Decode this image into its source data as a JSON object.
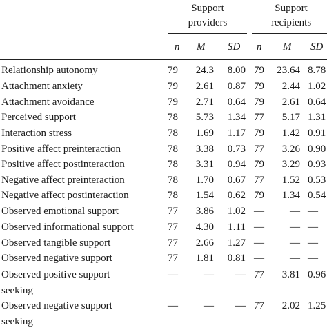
{
  "header": {
    "providers": [
      "Support",
      "providers"
    ],
    "recipients": [
      "Support",
      "recipients"
    ],
    "stats": [
      "n",
      "M",
      "SD"
    ]
  },
  "rows": [
    {
      "label": [
        "Relationship autonomy"
      ],
      "n1": "79",
      "m1": "24.3",
      "sd1": "8.00",
      "n2": "79",
      "m2": "23.64",
      "sd2": "8.78"
    },
    {
      "label": [
        "Attachment anxiety"
      ],
      "n1": "79",
      "m1": "2.61",
      "sd1": "0.87",
      "n2": "79",
      "m2": "2.44",
      "sd2": "1.02"
    },
    {
      "label": [
        "Attachment avoidance"
      ],
      "n1": "79",
      "m1": "2.71",
      "sd1": "0.64",
      "n2": "79",
      "m2": "2.61",
      "sd2": "0.64"
    },
    {
      "label": [
        "Perceived support"
      ],
      "n1": "78",
      "m1": "5.73",
      "sd1": "1.34",
      "n2": "77",
      "m2": "5.17",
      "sd2": "1.31"
    },
    {
      "label": [
        "Interaction stress"
      ],
      "n1": "78",
      "m1": "1.69",
      "sd1": "1.17",
      "n2": "79",
      "m2": "1.42",
      "sd2": "0.91"
    },
    {
      "label": [
        "Positive affect preinteraction"
      ],
      "n1": "78",
      "m1": "3.38",
      "sd1": "0.73",
      "n2": "77",
      "m2": "3.26",
      "sd2": "0.90"
    },
    {
      "label": [
        "Positive affect postinteraction"
      ],
      "n1": "78",
      "m1": "3.31",
      "sd1": "0.94",
      "n2": "79",
      "m2": "3.29",
      "sd2": "0.93"
    },
    {
      "label": [
        "Negative affect preinteraction"
      ],
      "n1": "78",
      "m1": "1.70",
      "sd1": "0.67",
      "n2": "77",
      "m2": "1.52",
      "sd2": "0.53"
    },
    {
      "label": [
        "Negative affect postinteraction"
      ],
      "n1": "78",
      "m1": "1.54",
      "sd1": "0.62",
      "n2": "79",
      "m2": "1.34",
      "sd2": "0.54"
    },
    {
      "label": [
        "Observed emotional support"
      ],
      "n1": "77",
      "m1": "3.86",
      "sd1": "1.02",
      "n2": "—",
      "m2": "—",
      "sd2": "—"
    },
    {
      "label": [
        "Observed informational support"
      ],
      "n1": "77",
      "m1": "4.30",
      "sd1": "1.11",
      "n2": "—",
      "m2": "—",
      "sd2": "—"
    },
    {
      "label": [
        "Observed tangible support"
      ],
      "n1": "77",
      "m1": "2.66",
      "sd1": "1.27",
      "n2": "—",
      "m2": "—",
      "sd2": "—"
    },
    {
      "label": [
        "Observed negative support"
      ],
      "n1": "77",
      "m1": "1.81",
      "sd1": "0.81",
      "n2": "—",
      "m2": "—",
      "sd2": "—"
    },
    {
      "label": [
        "Observed positive support",
        "seeking"
      ],
      "n1": "—",
      "m1": "—",
      "sd1": "—",
      "n2": "77",
      "m2": "3.81",
      "sd2": "0.96"
    },
    {
      "label": [
        "Observed negative support",
        "seeking"
      ],
      "n1": "—",
      "m1": "—",
      "sd1": "—",
      "n2": "77",
      "m2": "2.02",
      "sd2": "1.25"
    }
  ]
}
